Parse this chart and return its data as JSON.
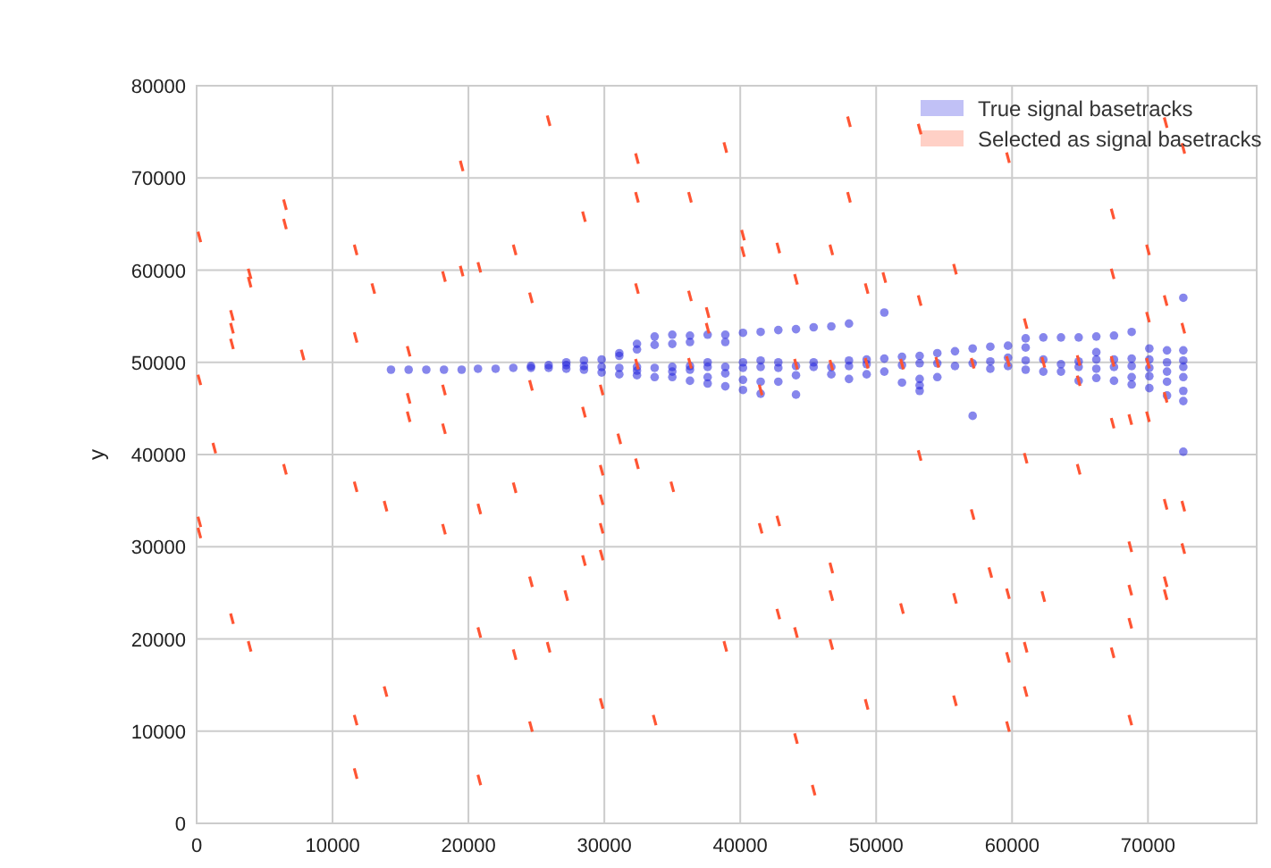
{
  "chart_data": {
    "type": "scatter",
    "ylabel": "y",
    "xlim": [
      0,
      78000
    ],
    "ylim": [
      0,
      80000
    ],
    "xticks": [
      0,
      10000,
      20000,
      30000,
      40000,
      50000,
      60000,
      70000
    ],
    "yticks": [
      0,
      10000,
      20000,
      30000,
      40000,
      50000,
      60000,
      70000,
      80000
    ],
    "grid": true,
    "legend": "top right",
    "series": [
      {
        "name": "True signal basetracks",
        "color": "#2222dd",
        "marker": "circle",
        "x": [
          14300,
          15600,
          16900,
          18200,
          19500,
          20700,
          22000,
          23300,
          24600,
          24600,
          25900,
          25900,
          27200,
          27200,
          27200,
          28500,
          28500,
          28500,
          29800,
          29800,
          29800,
          31100,
          31100,
          31100,
          31100,
          32400,
          32400,
          32400,
          32400,
          32400,
          33700,
          33700,
          33700,
          33700,
          35000,
          35000,
          35000,
          35000,
          35000,
          36300,
          36300,
          36300,
          36300,
          36300,
          37600,
          37600,
          37600,
          37600,
          37600,
          38900,
          38900,
          38900,
          38900,
          38900,
          40200,
          40200,
          40200,
          40200,
          40200,
          41500,
          41500,
          41500,
          41500,
          41500,
          42800,
          42800,
          42800,
          42800,
          44100,
          44100,
          44100,
          44100,
          45400,
          45400,
          45400,
          46700,
          46700,
          46700,
          48000,
          48000,
          48000,
          48000,
          49300,
          49300,
          49300,
          50600,
          50600,
          50600,
          51900,
          51900,
          51900,
          53200,
          53200,
          53200,
          53200,
          53200,
          54500,
          54500,
          54500,
          55800,
          55800,
          57100,
          57100,
          57100,
          58400,
          58400,
          58400,
          59700,
          59700,
          59700,
          61000,
          61000,
          61000,
          61000,
          62300,
          62300,
          62300,
          63600,
          63600,
          63600,
          64900,
          64900,
          64900,
          64900,
          66200,
          66200,
          66200,
          66200,
          66200,
          67500,
          67500,
          67500,
          67500,
          68800,
          68800,
          68800,
          68800,
          68800,
          70100,
          70100,
          70100,
          70100,
          70100,
          71400,
          71400,
          71400,
          71400,
          71400,
          72600,
          72600,
          72600,
          72600,
          72600,
          72600,
          72600,
          72600
        ],
        "values": [
          49200,
          49200,
          49200,
          49200,
          49200,
          49300,
          49300,
          49400,
          49400,
          49600,
          49400,
          49700,
          49300,
          49700,
          50000,
          49200,
          49600,
          50200,
          48900,
          49500,
          50300,
          48700,
          49400,
          50700,
          51000,
          48600,
          49100,
          49500,
          51400,
          52000,
          48400,
          49400,
          51900,
          52800,
          48400,
          49000,
          49500,
          52000,
          53000,
          48000,
          49200,
          49600,
          52200,
          52900,
          47700,
          48400,
          49500,
          50000,
          53000,
          47400,
          48800,
          49500,
          52200,
          53000,
          47000,
          48100,
          49400,
          50000,
          53200,
          46600,
          47900,
          49500,
          50200,
          53300,
          47900,
          49400,
          50000,
          53500,
          46500,
          48600,
          49600,
          53600,
          49500,
          50000,
          53800,
          48700,
          49500,
          53900,
          48200,
          49600,
          50200,
          54200,
          48700,
          49800,
          50300,
          49000,
          50400,
          55400,
          47800,
          49700,
          50600,
          46900,
          47500,
          48200,
          49900,
          50700,
          48400,
          49900,
          51000,
          49600,
          51200,
          44200,
          49900,
          51500,
          49300,
          50100,
          51700,
          49600,
          50500,
          51800,
          49200,
          50200,
          51600,
          52600,
          49000,
          50300,
          52700,
          49000,
          49800,
          52700,
          48000,
          49500,
          50100,
          52700,
          48300,
          49300,
          50300,
          51100,
          52800,
          48000,
          49500,
          50300,
          52900,
          47600,
          48400,
          49600,
          50400,
          53300,
          47200,
          48500,
          49400,
          50300,
          51500,
          46400,
          47900,
          49000,
          50000,
          51300,
          40300,
          45800,
          46900,
          48400,
          49500,
          50200,
          51300,
          57000
        ]
      },
      {
        "name": "Selected as signal basetracks",
        "color": "#ff5533",
        "x": [
          25900,
          19500,
          32400,
          32400,
          36300,
          38900,
          6500,
          6500,
          200,
          11700,
          28500,
          23400,
          20800,
          19500,
          18200,
          3900,
          3900,
          13000,
          24600,
          32400,
          36300,
          2600,
          2600,
          2600,
          7800,
          11700,
          15600,
          37600,
          37600,
          200,
          15600,
          15600,
          18200,
          18200,
          24600,
          29800,
          28500,
          31100,
          32400,
          1300,
          6500,
          11700,
          13900,
          18200,
          20800,
          23400,
          29800,
          29800,
          29800,
          29800,
          35000,
          200,
          200,
          28500,
          24600,
          27200,
          2600,
          3900,
          20800,
          23400,
          25900,
          13900,
          11700,
          24600,
          29800,
          33700,
          11700,
          20800,
          38900,
          48000,
          53200,
          59700,
          71300,
          72600,
          48000,
          40200,
          40200,
          42800,
          46700,
          44100,
          49300,
          50600,
          53200,
          55800,
          67400,
          67400,
          70000,
          71300,
          72600,
          70000,
          41500,
          64900,
          67400,
          68700,
          70000,
          71300,
          53200,
          61000,
          64900,
          57100,
          41500,
          42800,
          71300,
          72600,
          68700,
          72600,
          46700,
          46700,
          46700,
          42800,
          44100,
          51900,
          55800,
          58400,
          59700,
          62300,
          68700,
          68700,
          71300,
          71300,
          59700,
          61000,
          61000,
          67400,
          49300,
          55800,
          59700,
          68700,
          44100,
          45400,
          61000,
          32400,
          36300,
          44100,
          46700,
          49300,
          51900,
          54500,
          57100,
          59700,
          62300,
          64900,
          67400,
          70000
        ],
        "values": [
          76200,
          71300,
          72100,
          67900,
          67900,
          73300,
          67100,
          65000,
          63600,
          62200,
          65800,
          62200,
          60300,
          59900,
          59300,
          59600,
          58700,
          58000,
          57000,
          58000,
          57200,
          55100,
          53700,
          52000,
          50800,
          52700,
          51200,
          55400,
          53700,
          48100,
          46100,
          44100,
          47000,
          42800,
          47500,
          47000,
          44600,
          41700,
          39000,
          40700,
          38400,
          36500,
          34400,
          31900,
          34100,
          36400,
          38300,
          35100,
          32000,
          29100,
          36500,
          32700,
          31500,
          28500,
          26200,
          24700,
          22200,
          19200,
          20700,
          18300,
          19100,
          14300,
          11200,
          10500,
          13000,
          11200,
          5400,
          4700,
          19200,
          76100,
          75300,
          72200,
          76000,
          73200,
          67900,
          63800,
          62000,
          62400,
          62200,
          59000,
          58000,
          59200,
          56700,
          60100,
          66100,
          59600,
          62200,
          56700,
          53700,
          54900,
          47000,
          48000,
          43400,
          43800,
          44100,
          46200,
          39900,
          39600,
          38400,
          33500,
          32000,
          32800,
          34600,
          34400,
          30000,
          29800,
          27700,
          24700,
          19400,
          22700,
          20700,
          23300,
          24400,
          27200,
          24900,
          24600,
          25300,
          21700,
          26200,
          24800,
          18000,
          19100,
          14300,
          18500,
          12900,
          13300,
          10500,
          11200,
          9200,
          3600,
          54200,
          49800,
          49900,
          49800,
          49700,
          49900,
          49800,
          50000,
          49900,
          50100,
          50000,
          50200,
          50100,
          49900
        ]
      }
    ]
  }
}
